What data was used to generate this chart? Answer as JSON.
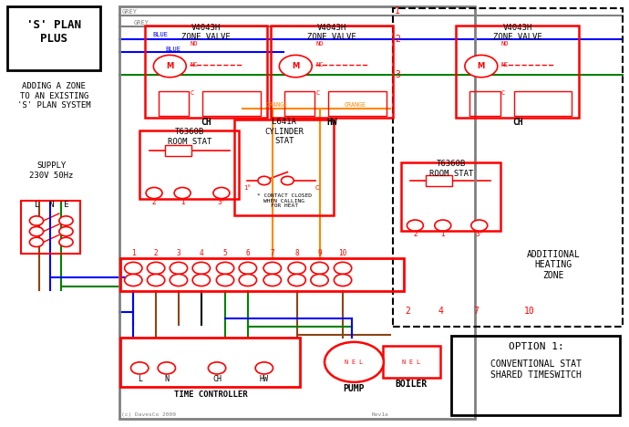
{
  "bg_color": "#ffffff",
  "title_box_text": "'S' PLAN\nPLUS",
  "subtitle_text": "ADDING A ZONE\nTO AN EXISTING\n'S' PLAN SYSTEM",
  "supply_text": "SUPPLY\n230V 50Hz",
  "lne_text": "L  N  E",
  "option_text1": "OPTION 1:",
  "option_text2": "CONVENTIONAL STAT\nSHARED TIMESWITCH",
  "additional_zone_text": "ADDITIONAL\nHEATING\nZONE",
  "grey_color": "#808080",
  "blue_color": "#0000ff",
  "green_color": "#008000",
  "orange_color": "#ff8800",
  "red_color": "#ff0000",
  "brown_color": "#8B4513",
  "black_color": "#000000",
  "white_color": "#ffffff"
}
